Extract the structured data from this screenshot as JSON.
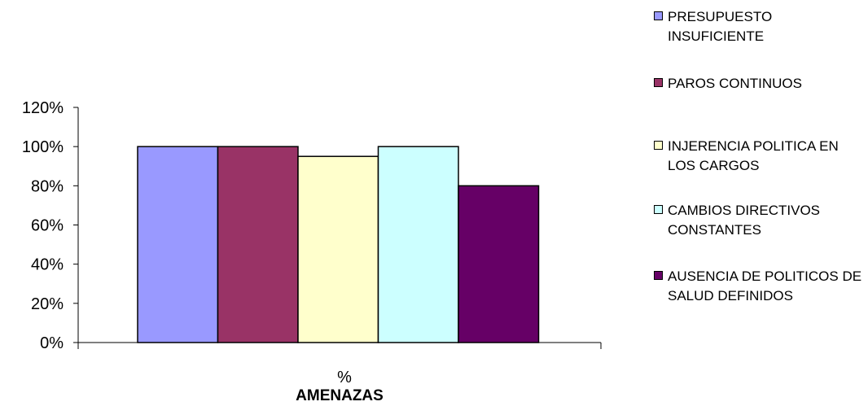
{
  "chart_data": {
    "type": "bar",
    "categories": [
      "%"
    ],
    "series": [
      {
        "name": "PRESUPUESTO INSUFICIENTE",
        "values": [
          100
        ],
        "color": "#9999FF"
      },
      {
        "name": "PAROS CONTINUOS",
        "values": [
          100
        ],
        "color": "#993366"
      },
      {
        "name": "INJERENCIA POLITICA EN LOS CARGOS",
        "values": [
          95
        ],
        "color": "#FFFFCC"
      },
      {
        "name": "CAMBIOS DIRECTIVOS CONSTANTES",
        "values": [
          100
        ],
        "color": "#CCFFFF"
      },
      {
        "name": "AUSENCIA DE POLITICOS DE SALUD DEFINIDOS",
        "values": [
          80
        ],
        "color": "#660066"
      }
    ],
    "ylim": [
      0,
      120
    ],
    "yticks": [
      "0%",
      "20%",
      "40%",
      "60%",
      "80%",
      "100%",
      "120%"
    ],
    "xlabel": "AMENAZAS",
    "grid": false,
    "legend_position": "right"
  }
}
